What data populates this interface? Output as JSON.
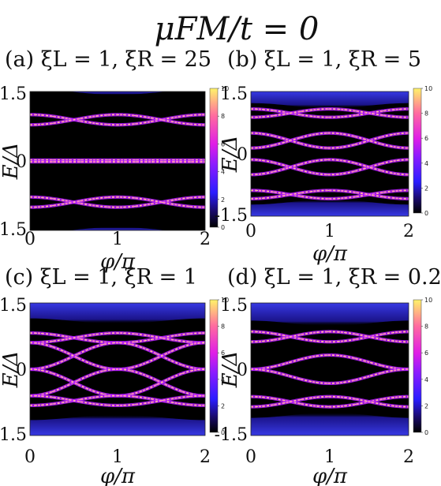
{
  "figure_title": "μFM/t = 0",
  "chart_data": [
    {
      "type": "heatmap",
      "panel": "(a)",
      "title": "ξL = 1, ξR = 25",
      "xlabel": "φ/π",
      "ylabel": "E/Δ",
      "xlim": [
        0,
        2
      ],
      "ylim": [
        -1.5,
        1.5
      ],
      "x_ticks": [
        "0",
        "1",
        "2"
      ],
      "y_ticks": [
        "1.5",
        "0",
        "-1.5"
      ],
      "colorbar_ticks": [
        "10",
        "8",
        "6",
        "4",
        "2",
        "0"
      ],
      "colorbar_range": [
        0,
        10
      ],
      "bands": [
        {
          "e_at_0": 1.0,
          "e_at_pi": 0.78
        },
        {
          "e_at_0": 0.78,
          "e_at_pi": 1.0
        },
        {
          "e_at_0": 0.02,
          "e_at_pi": 0.02
        },
        {
          "e_at_0": -0.02,
          "e_at_pi": -0.02
        },
        {
          "e_at_0": -0.78,
          "e_at_pi": -1.0
        },
        {
          "e_at_0": -1.0,
          "e_at_pi": -0.78
        }
      ],
      "continuum_edge": 1.55
    },
    {
      "type": "heatmap",
      "panel": "(b)",
      "title": "ξL = 1, ξR = 5",
      "xlabel": "φ/π",
      "ylabel": "E/Δ",
      "xlim": [
        0,
        2
      ],
      "ylim": [
        -1.5,
        1.5
      ],
      "x_ticks": [
        "0",
        "1",
        "2"
      ],
      "y_ticks": [
        "1.5",
        "0",
        "-1.5"
      ],
      "colorbar_ticks": [
        "10",
        "8",
        "6",
        "4",
        "2",
        "0"
      ],
      "colorbar_range": [
        0,
        10
      ],
      "bands": [
        {
          "e_at_0": 1.08,
          "e_at_pi": 0.88
        },
        {
          "e_at_0": 0.88,
          "e_at_pi": 1.08
        },
        {
          "e_at_0": 0.5,
          "e_at_pi": 0.14
        },
        {
          "e_at_0": 0.14,
          "e_at_pi": 0.5
        },
        {
          "e_at_0": -0.14,
          "e_at_pi": -0.5
        },
        {
          "e_at_0": -0.5,
          "e_at_pi": -0.14
        },
        {
          "e_at_0": -0.88,
          "e_at_pi": -1.08
        },
        {
          "e_at_0": -1.08,
          "e_at_pi": -0.88
        }
      ],
      "continuum_edge": 1.22
    },
    {
      "type": "heatmap",
      "panel": "(c)",
      "title": "ξL = 1, ξR = 1",
      "xlabel": "φ/π",
      "ylabel": "E/Δ",
      "xlim": [
        0,
        2
      ],
      "ylim": [
        -1.5,
        1.5
      ],
      "x_ticks": [
        "0",
        "1",
        "2"
      ],
      "y_ticks": [
        "1.5",
        "0",
        "-1.5"
      ],
      "colorbar_ticks": [
        "10",
        "8",
        "6",
        "4",
        "2",
        "0"
      ],
      "colorbar_range": [
        0,
        10
      ],
      "bands": [
        {
          "e_at_0": 0.82,
          "e_at_pi": 0.6
        },
        {
          "e_at_0": 0.6,
          "e_at_pi": 0.82
        },
        {
          "e_at_0": 0.0,
          "e_at_pi": 0.6
        },
        {
          "e_at_0": 0.6,
          "e_at_pi": 0.0
        },
        {
          "e_at_0": -0.6,
          "e_at_pi": 0.0
        },
        {
          "e_at_0": 0.0,
          "e_at_pi": -0.6
        },
        {
          "e_at_0": -0.82,
          "e_at_pi": -0.6
        },
        {
          "e_at_0": -0.6,
          "e_at_pi": -0.82
        }
      ],
      "continuum_edge": 1.15
    },
    {
      "type": "heatmap",
      "panel": "(d)",
      "title": "ξL = 1, ξR = 0.2",
      "xlabel": "φ/π",
      "ylabel": "E/Δ",
      "xlim": [
        0,
        2
      ],
      "ylim": [
        -1.5,
        1.5
      ],
      "x_ticks": [
        "0",
        "1",
        "2"
      ],
      "y_ticks": [
        "1.5",
        "0",
        "-1.5"
      ],
      "colorbar_ticks": [
        "10",
        "8",
        "6",
        "4",
        "2",
        "0"
      ],
      "colorbar_range": [
        0,
        10
      ],
      "bands": [
        {
          "e_at_0": 0.85,
          "e_at_pi": 0.62
        },
        {
          "e_at_0": 0.62,
          "e_at_pi": 0.85
        },
        {
          "e_at_0": 0.0,
          "e_at_pi": 0.32
        },
        {
          "e_at_0": 0.0,
          "e_at_pi": -0.32
        },
        {
          "e_at_0": -0.62,
          "e_at_pi": -0.85
        },
        {
          "e_at_0": -0.85,
          "e_at_pi": -0.62
        }
      ],
      "continuum_edge": 1.1
    }
  ]
}
